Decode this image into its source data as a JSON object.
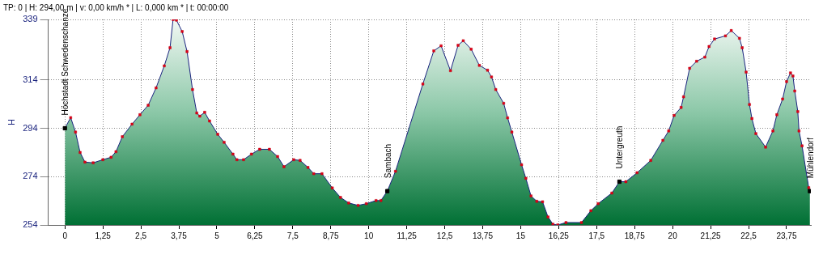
{
  "chart_data": {
    "type": "area",
    "title": "TP: 0 | H: 294,00 m | v: 0,00 km/h * | L: 0,000 km * | t: 00:00:00",
    "ylabel": "H",
    "xlim": [
      -0.55,
      24.55
    ],
    "ylim": [
      254,
      339
    ],
    "xticks": [
      0,
      {
        "value": 1.25,
        "label": "1,25"
      },
      {
        "value": 2.5,
        "label": "2,5"
      },
      {
        "value": 3.75,
        "label": "3,75"
      },
      5,
      {
        "value": 6.25,
        "label": "6,25"
      },
      {
        "value": 7.5,
        "label": "7,5"
      },
      {
        "value": 8.75,
        "label": "8,75"
      },
      10,
      {
        "value": 11.25,
        "label": "11,25"
      },
      {
        "value": 12.5,
        "label": "12,5"
      },
      {
        "value": 13.75,
        "label": "13,75"
      },
      15,
      {
        "value": 16.25,
        "label": "16,25"
      },
      {
        "value": 17.5,
        "label": "17,5"
      },
      {
        "value": 18.75,
        "label": "18,75"
      },
      20,
      {
        "value": 21.25,
        "label": "21,25"
      },
      {
        "value": 22.5,
        "label": "22,5"
      },
      {
        "value": 23.75,
        "label": "23,75"
      }
    ],
    "yticks": [
      254,
      274,
      294,
      314,
      339
    ],
    "grid": true,
    "legend": false,
    "marker": "square",
    "line_style": "solid",
    "series": [
      {
        "color": "#1a237e",
        "x": [
          0,
          0.19,
          0.35,
          0.5,
          0.66,
          0.93,
          1.25,
          1.52,
          1.68,
          1.89,
          2.21,
          2.47,
          2.74,
          3.0,
          3.27,
          3.46,
          3.56,
          3.67,
          3.86,
          4.02,
          4.2,
          4.34,
          4.44,
          4.6,
          4.76,
          5.03,
          5.24,
          5.53,
          5.66,
          5.88,
          6.14,
          6.41,
          6.73,
          7.0,
          7.21,
          7.53,
          7.74,
          8.0,
          8.19,
          8.46,
          8.8,
          9.07,
          9.34,
          9.65,
          9.92,
          10.24,
          10.4,
          10.61,
          10.88,
          11.78,
          12.14,
          12.38,
          12.69,
          12.94,
          13.11,
          13.37,
          13.64,
          13.91,
          14.04,
          14.18,
          14.44,
          14.57,
          14.71,
          15.03,
          15.17,
          15.34,
          15.53,
          15.72,
          15.9,
          16.06,
          16.22,
          16.49,
          17.0,
          17.31,
          17.55,
          18.0,
          18.25,
          18.46,
          18.83,
          19.28,
          19.68,
          19.87,
          20.05,
          20.28,
          20.36,
          20.56,
          20.79,
          21.06,
          21.2,
          21.38,
          21.74,
          21.93,
          22.2,
          22.29,
          22.42,
          22.53,
          22.61,
          22.74,
          23.06,
          23.3,
          23.43,
          23.62,
          23.75,
          23.88,
          23.96,
          24.02,
          24.12,
          24.16,
          24.26,
          24.48,
          24.52
        ],
        "values": [
          294,
          298.4,
          292.4,
          284,
          280,
          279.7,
          281,
          282,
          284.3,
          290.5,
          295.7,
          299.6,
          303.5,
          310.7,
          319.8,
          327.3,
          339,
          338.7,
          334,
          325.7,
          310,
          300.3,
          299,
          300.6,
          297,
          291.5,
          288.2,
          283.3,
          281,
          281,
          283.3,
          285.3,
          285.3,
          282.3,
          278.1,
          281,
          280.7,
          277.8,
          275.2,
          275.2,
          269.3,
          265.4,
          263.1,
          262.1,
          262.8,
          264.1,
          264.1,
          268,
          276.2,
          312.3,
          326,
          328.1,
          317.8,
          328.3,
          330.2,
          326.7,
          320,
          318,
          315.2,
          310,
          304.3,
          298.3,
          292.4,
          278.9,
          273.3,
          266,
          263.8,
          263.6,
          257.3,
          254.3,
          254,
          255,
          255,
          259.9,
          262.8,
          267.2,
          271.9,
          271.9,
          275.6,
          280.7,
          289,
          292.9,
          299.3,
          302.6,
          307,
          318.8,
          321.7,
          323.4,
          327.8,
          330.9,
          332.2,
          334.4,
          331.2,
          327.3,
          317.2,
          303.8,
          298,
          291.8,
          286.2,
          292.9,
          299.6,
          306.1,
          313.3,
          316.9,
          315.6,
          309.4,
          300.9,
          292.9,
          286.7,
          269.4,
          268
        ]
      },
      {
        "type": "scatter",
        "color": "#000000",
        "x": [
          0,
          10.61,
          18.25,
          24.52
        ],
        "values": [
          294,
          268,
          271.9,
          268
        ]
      }
    ],
    "annotations": [
      {
        "text": "Höchstadt Schwedenschanze",
        "x": 0,
        "y": 294
      },
      {
        "text": "Sambach",
        "x": 10.61,
        "y": 268
      },
      {
        "text": "Untergreuth",
        "x": 18.25,
        "y": 271.9
      },
      {
        "text": "Mühlendorf",
        "x": 24.52,
        "y": 268
      }
    ]
  }
}
